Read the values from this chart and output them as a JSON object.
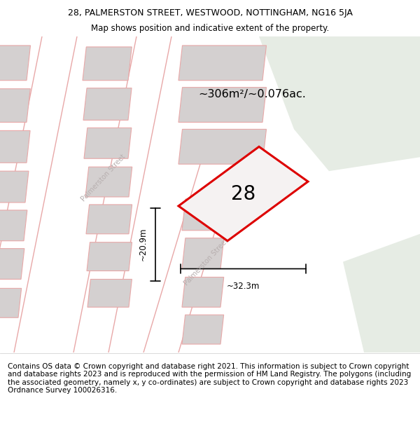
{
  "title": "28, PALMERSTON STREET, WESTWOOD, NOTTINGHAM, NG16 5JA",
  "subtitle": "Map shows position and indicative extent of the property.",
  "footer": "Contains OS data © Crown copyright and database right 2021. This information is subject to Crown copyright and database rights 2023 and is reproduced with the permission of HM Land Registry. The polygons (including the associated geometry, namely x, y co-ordinates) are subject to Crown copyright and database rights 2023 Ordnance Survey 100026316.",
  "title_fontsize": 9.0,
  "subtitle_fontsize": 8.5,
  "footer_fontsize": 7.5,
  "bg_color": "#f2f0f0",
  "bg_green_color": "#e6ece4",
  "road_color": "#ffffff",
  "building_fill": "#d4d0d0",
  "building_edge": "#e8a8a8",
  "road_edge": "#e8a8a8",
  "property_fill": "#f5f2f2",
  "property_edge": "#dd0000",
  "street_text_color": "#b8b0b0",
  "area_label": "~306m²/~0.076ac.",
  "number_label": "28",
  "width_label": "~32.3m",
  "height_label": "~20.9m",
  "street_label1": "Palmerston Street",
  "street_label2": "Palmerston Street"
}
